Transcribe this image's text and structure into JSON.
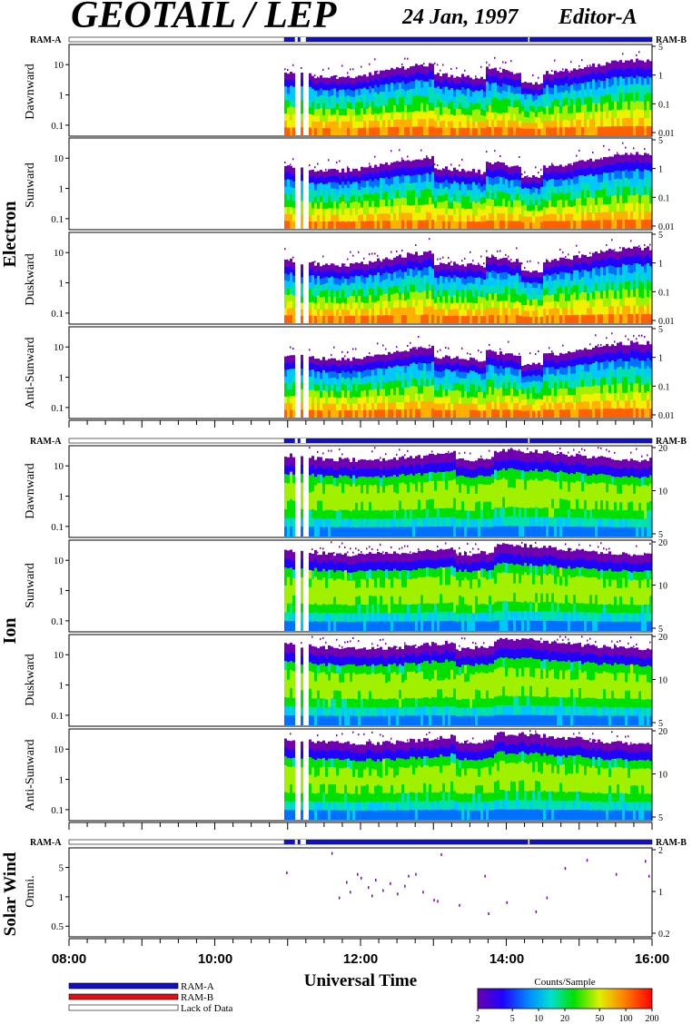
{
  "header": {
    "title": "GEOTAIL / LEP",
    "date": "24 Jan, 1997",
    "editor": "Editor-A"
  },
  "status_bar": {
    "left_label": "RAM-A",
    "right_label": "RAM-B"
  },
  "groups": [
    {
      "name": "Electron"
    },
    {
      "name": "Ion"
    },
    {
      "name": "Solar Wind"
    }
  ],
  "colors": {
    "ram_a": "#1010c8",
    "ram_b": "#e01010",
    "lack_of_data": "#ffffff"
  },
  "chart_data": [
    {
      "type": "heatmap",
      "group": "Electron",
      "panels": [
        {
          "ylabel": "Dawnward"
        },
        {
          "ylabel": "Sunward"
        },
        {
          "ylabel": "Duskward"
        },
        {
          "ylabel": "Anti-Sunward"
        }
      ],
      "left_ticks": [
        "10",
        "1",
        "0.1"
      ],
      "right_ticks": [
        "5",
        "1",
        "0.1",
        "0.01"
      ],
      "data_gap_hours": [
        10.95,
        11.25
      ],
      "xlim_hours": [
        8,
        16
      ]
    },
    {
      "type": "heatmap",
      "group": "Ion",
      "panels": [
        {
          "ylabel": "Dawnward"
        },
        {
          "ylabel": "Sunward"
        },
        {
          "ylabel": "Duskward"
        },
        {
          "ylabel": "Anti-Sunward"
        }
      ],
      "left_ticks": [
        "10",
        "1",
        "0.1"
      ],
      "right_ticks": [
        "20",
        "10",
        "5"
      ],
      "data_gap_hours": [
        10.95,
        11.25
      ],
      "xlim_hours": [
        8,
        16
      ]
    },
    {
      "type": "scatter",
      "group": "Solar Wind",
      "panels": [
        {
          "ylabel": "Omni."
        }
      ],
      "left_ticks": [
        "5",
        "1",
        "0.5"
      ],
      "right_ticks": [
        "2",
        "1",
        "0.2"
      ],
      "points": [
        [
          10.98,
          3.2
        ],
        [
          11.6,
          6.8
        ],
        [
          11.7,
          1.2
        ],
        [
          11.8,
          2.2
        ],
        [
          11.85,
          1.5
        ],
        [
          11.95,
          3.0
        ],
        [
          12.0,
          2.6
        ],
        [
          12.1,
          1.8
        ],
        [
          12.15,
          1.3
        ],
        [
          12.2,
          2.4
        ],
        [
          12.3,
          1.6
        ],
        [
          12.4,
          2.1
        ],
        [
          12.5,
          1.4
        ],
        [
          12.6,
          1.9
        ],
        [
          12.65,
          2.8
        ],
        [
          12.75,
          3.0
        ],
        [
          12.85,
          1.5
        ],
        [
          13.0,
          1.1
        ],
        [
          13.05,
          1.05
        ],
        [
          13.1,
          6.5
        ],
        [
          13.35,
          0.9
        ],
        [
          13.7,
          2.8
        ],
        [
          13.75,
          0.65
        ],
        [
          14.0,
          1.0
        ],
        [
          14.4,
          0.7
        ],
        [
          14.55,
          1.2
        ],
        [
          14.8,
          3.8
        ],
        [
          15.1,
          5.2
        ],
        [
          15.5,
          3.0
        ],
        [
          15.9,
          5.0
        ],
        [
          15.95,
          2.8
        ]
      ],
      "xlim_hours": [
        8,
        16
      ]
    }
  ],
  "xaxis": {
    "tick_labels": [
      "08:00",
      "10:00",
      "12:00",
      "14:00",
      "16:00"
    ],
    "label": "Universal Time"
  },
  "legend": {
    "items": [
      "RAM-A",
      "RAM-B",
      "Lack of Data"
    ]
  },
  "colorbar": {
    "title": "Counts/Sample",
    "tick_labels": [
      "2",
      "5",
      "10",
      "20",
      "50",
      "100",
      "200"
    ]
  }
}
